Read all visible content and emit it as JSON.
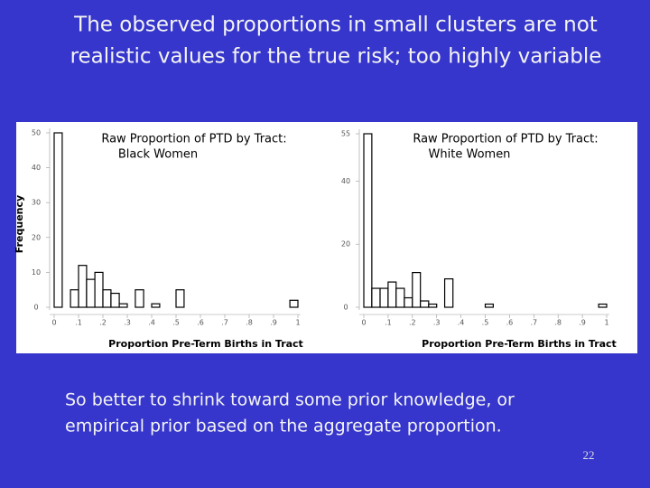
{
  "slide": {
    "title": [
      "The observed proportions in small clusters are not",
      "realistic values for the true risk; too highly variable"
    ],
    "body": [
      "So better to shrink toward some prior knowledge, or",
      "empirical prior based on the aggregate proportion."
    ],
    "page_number": "22"
  },
  "chart_data": [
    {
      "type": "histogram",
      "title": "Raw Proportion of PTD by Tract:",
      "subtitle": "Black Women",
      "xlabel": "Proportion Pre-Term Births in Tract",
      "ylabel": "Frequency",
      "color": "#ffffff",
      "bins": [
        0,
        0.033,
        0.067,
        0.1,
        0.133,
        0.167,
        0.2,
        0.233,
        0.267,
        0.3,
        0.333,
        0.367,
        0.4,
        0.433,
        0.467,
        0.5,
        0.533,
        0.567,
        0.6,
        0.633,
        0.667,
        0.7,
        0.733,
        0.767,
        0.8,
        0.833,
        0.867,
        0.9,
        0.933,
        0.967,
        1
      ],
      "values": [
        50,
        0,
        5,
        12,
        8,
        10,
        5,
        4,
        1,
        0,
        5,
        0,
        1,
        0,
        0,
        5,
        0,
        0,
        0,
        0,
        0,
        0,
        0,
        0,
        0,
        0,
        0,
        0,
        0,
        2
      ],
      "xlim": [
        0,
        1
      ],
      "xticks": [
        0,
        {
          "value": 0.1,
          "label": ".1"
        },
        {
          "value": 0.2,
          "label": ".2"
        },
        {
          "value": 0.3,
          "label": ".3"
        },
        {
          "value": 0.4,
          "label": ".4"
        },
        {
          "value": 0.5,
          "label": ".5"
        },
        {
          "value": 0.6,
          "label": ".6"
        },
        {
          "value": 0.7,
          "label": ".7"
        },
        {
          "value": 0.8,
          "label": ".8"
        },
        {
          "value": 0.9,
          "label": ".9"
        },
        1
      ],
      "ylim": [
        0,
        50
      ],
      "yticks": [
        0,
        10,
        20,
        30,
        40,
        50
      ]
    },
    {
      "type": "histogram",
      "title": "Raw Proportion of PTD by Tract:",
      "subtitle": "White Women",
      "xlabel": "Proportion Pre-Term Births in Tract",
      "color": "#ffffff",
      "bins": [
        0,
        0.033,
        0.067,
        0.1,
        0.133,
        0.167,
        0.2,
        0.233,
        0.267,
        0.3,
        0.333,
        0.367,
        0.4,
        0.433,
        0.467,
        0.5,
        0.533,
        0.567,
        0.6,
        0.633,
        0.667,
        0.7,
        0.733,
        0.767,
        0.8,
        0.833,
        0.867,
        0.9,
        0.933,
        0.967,
        1
      ],
      "values": [
        55,
        6,
        6,
        8,
        6,
        3,
        11,
        2,
        1,
        0,
        9,
        0,
        0,
        0,
        0,
        1,
        0,
        0,
        0,
        0,
        0,
        0,
        0,
        0,
        0,
        0,
        0,
        0,
        0,
        1
      ],
      "xlim": [
        0,
        1
      ],
      "xticks": [
        0,
        {
          "value": 0.1,
          "label": ".1"
        },
        {
          "value": 0.2,
          "label": ".2"
        },
        {
          "value": 0.3,
          "label": ".3"
        },
        {
          "value": 0.4,
          "label": ".4"
        },
        {
          "value": 0.5,
          "label": ".5"
        },
        {
          "value": 0.6,
          "label": ".6"
        },
        {
          "value": 0.7,
          "label": ".7"
        },
        {
          "value": 0.8,
          "label": ".8"
        },
        {
          "value": 0.9,
          "label": ".9"
        },
        1
      ],
      "ylim": [
        0,
        55
      ],
      "yticks": [
        0,
        20,
        40,
        55
      ]
    }
  ]
}
